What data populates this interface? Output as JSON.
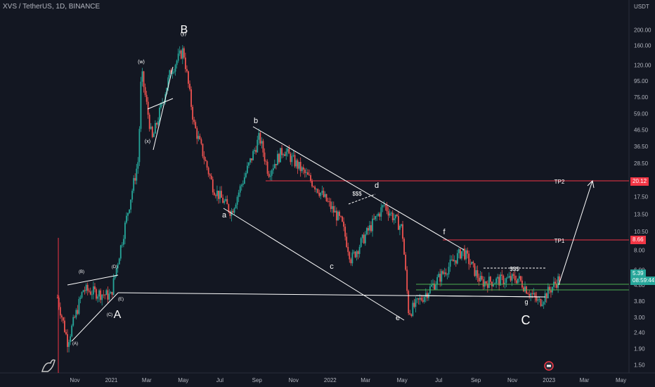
{
  "header": {
    "title": "XVS / TetherUS, 1D, BINANCE"
  },
  "axis": {
    "currency": "USDT",
    "y_ticks": [
      "200.00",
      "160.00",
      "120.00",
      "95.00",
      "75.00",
      "59.00",
      "46.50",
      "36.50",
      "28.50",
      "22.50",
      "17.50",
      "13.50",
      "10.50",
      "8.00",
      "6.00",
      "4.80",
      "3.80",
      "3.00",
      "2.40",
      "1.90",
      "1.50"
    ],
    "x_ticks": [
      "Nov",
      "2021",
      "Mar",
      "May",
      "Jul",
      "Sep",
      "Nov",
      "2022",
      "Mar",
      "May",
      "Jul",
      "Sep",
      "Nov",
      "2023",
      "Mar",
      "May"
    ]
  },
  "price_badges": {
    "tp2": "20.12",
    "tp1": "8.66",
    "current": "5.39",
    "countdown": "08:59:44"
  },
  "colors": {
    "background": "#131722",
    "up": "#26a69a",
    "down": "#ef5350",
    "target_line": "#f23645",
    "support_line": "#4caf50",
    "annotation": "#ffffff"
  },
  "chart_data": {
    "type": "candlestick",
    "symbol": "XVS / TetherUS",
    "interval": "1D",
    "exchange": "BINANCE",
    "y_scale": "log",
    "ylim": [
      1.4,
      240
    ],
    "key_points": [
      {
        "date": "2020-10-03",
        "price": 4.0
      },
      {
        "date": "2020-10-20",
        "price": 2.1
      },
      {
        "date": "2020-11-15",
        "price": 4.5
      },
      {
        "date": "2020-12-31",
        "price": 4.1
      },
      {
        "date": "2021-02-15",
        "price": 30
      },
      {
        "date": "2021-02-20",
        "price": 110
      },
      {
        "date": "2021-03-10",
        "price": 40
      },
      {
        "date": "2021-04-10",
        "price": 110
      },
      {
        "date": "2021-05-01",
        "price": 150
      },
      {
        "date": "2021-05-19",
        "price": 50
      },
      {
        "date": "2021-06-20",
        "price": 20
      },
      {
        "date": "2021-07-20",
        "price": 14
      },
      {
        "date": "2021-09-05",
        "price": 42
      },
      {
        "date": "2021-09-20",
        "price": 25
      },
      {
        "date": "2021-10-15",
        "price": 35
      },
      {
        "date": "2021-12-10",
        "price": 20
      },
      {
        "date": "2022-01-20",
        "price": 12
      },
      {
        "date": "2022-02-05",
        "price": 7.0
      },
      {
        "date": "2022-03-01",
        "price": 10
      },
      {
        "date": "2022-04-01",
        "price": 15.5
      },
      {
        "date": "2022-05-01",
        "price": 11
      },
      {
        "date": "2022-05-12",
        "price": 3.2
      },
      {
        "date": "2022-06-15",
        "price": 4.5
      },
      {
        "date": "2022-08-10",
        "price": 8.0
      },
      {
        "date": "2022-09-10",
        "price": 5.0
      },
      {
        "date": "2022-11-10",
        "price": 5.3
      },
      {
        "date": "2022-12-15",
        "price": 3.7
      },
      {
        "date": "2023-01-20",
        "price": 5.39
      }
    ],
    "horizontal_levels": [
      {
        "label": "TP2",
        "price": 20.12
      },
      {
        "label": "TP1",
        "price": 8.66
      }
    ],
    "wave_labels": [
      "(A)",
      "(B)",
      "(C)",
      "(D)",
      "(E)",
      "A",
      "(w)",
      "(x)",
      "(y)",
      "B",
      "a",
      "b",
      "c",
      "d",
      "e",
      "f",
      "g",
      "C",
      "$$$",
      "$$$"
    ]
  }
}
